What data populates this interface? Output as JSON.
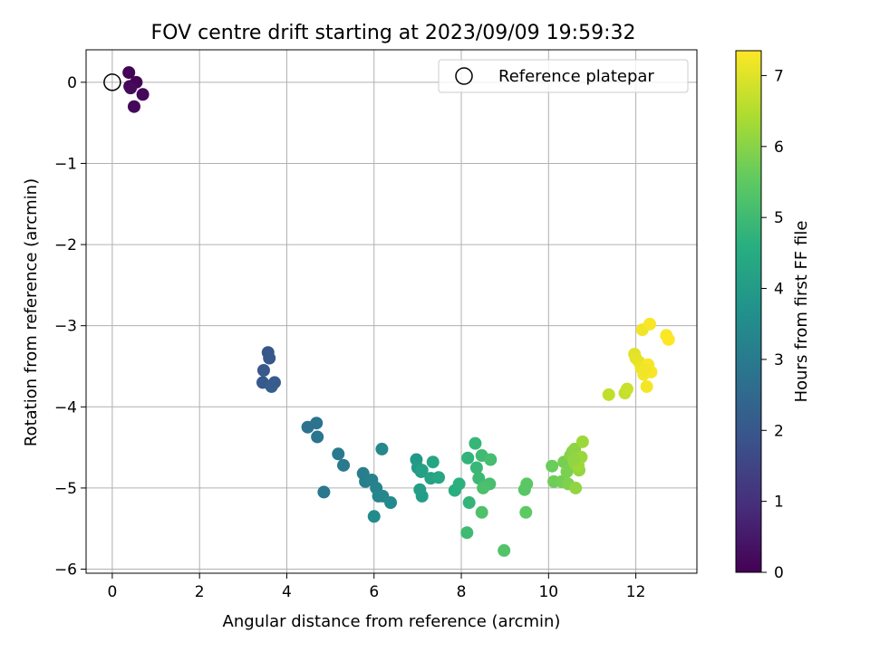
{
  "chart_data": {
    "type": "scatter",
    "title": "FOV centre drift starting at 2023/09/09 19:59:32",
    "xlabel": "Angular distance from reference (arcmin)",
    "ylabel": "Rotation from reference (arcmin)",
    "xlim": [
      -0.6,
      13.4
    ],
    "ylim": [
      -6.05,
      0.4
    ],
    "xticks": [
      0,
      2,
      4,
      6,
      8,
      10,
      12
    ],
    "yticks": [
      0,
      -1,
      -2,
      -3,
      -4,
      -5,
      -6
    ],
    "xtick_labels": [
      "0",
      "2",
      "4",
      "6",
      "8",
      "10",
      "12"
    ],
    "ytick_labels": [
      "0",
      "−1",
      "−2",
      "−3",
      "−4",
      "−5",
      "−6"
    ],
    "grid": true,
    "legend": {
      "placement": "top-right",
      "entries": [
        {
          "label": "Reference platepar",
          "marker": "open-circle"
        }
      ]
    },
    "reference_point": {
      "x": 0,
      "y": 0,
      "label": "Reference platepar"
    },
    "colorbar": {
      "label": "Hours from first FF file",
      "colormap": "viridis",
      "range": [
        0,
        7.35
      ],
      "ticks": [
        0,
        1,
        2,
        3,
        4,
        5,
        6,
        7
      ],
      "tick_labels": [
        "0",
        "1",
        "2",
        "3",
        "4",
        "5",
        "6",
        "7"
      ]
    },
    "series": [
      {
        "x": [
          0.38,
          0.55,
          0.4,
          0.7,
          0.5,
          0.42,
          3.57,
          3.6,
          3.47,
          3.45,
          3.72,
          3.65,
          4.48,
          4.68,
          4.7,
          4.85,
          5.18,
          5.3,
          5.75,
          5.8,
          5.95,
          6.05,
          6.1,
          6.2,
          6.18,
          6.38,
          6.0,
          6.97,
          7.0,
          7.08,
          7.1,
          7.05,
          7.1,
          7.3,
          7.35,
          7.48,
          7.85,
          7.95,
          8.15,
          8.18,
          8.32,
          8.35,
          8.4,
          8.47,
          8.55,
          8.67,
          8.65,
          8.5,
          8.47,
          8.13,
          8.98,
          9.45,
          9.5,
          9.48,
          10.08,
          10.12,
          10.3,
          10.35,
          10.42,
          10.45,
          10.5,
          10.55,
          10.6,
          10.6,
          10.62,
          10.7,
          10.75,
          10.78,
          10.68,
          10.58,
          11.38,
          11.75,
          11.8,
          11.97,
          12.0,
          12.08,
          12.12,
          12.15,
          12.18,
          12.2,
          12.25,
          12.28,
          12.32,
          12.35,
          12.7,
          12.75,
          12.22
        ]
      }
    ],
    "y_values": [
      0.12,
      0.0,
      -0.05,
      -0.15,
      -0.3,
      -0.07,
      -3.33,
      -3.4,
      -3.55,
      -3.7,
      -3.7,
      -3.75,
      -4.25,
      -4.2,
      -4.37,
      -5.05,
      -4.58,
      -4.72,
      -4.82,
      -4.92,
      -4.9,
      -5.0,
      -5.1,
      -5.1,
      -4.52,
      -5.18,
      -5.35,
      -4.65,
      -4.75,
      -4.8,
      -5.1,
      -5.02,
      -4.78,
      -4.88,
      -4.68,
      -4.87,
      -5.03,
      -4.95,
      -4.63,
      -5.18,
      -4.45,
      -4.75,
      -4.88,
      -4.6,
      -4.97,
      -4.65,
      -4.95,
      -5.0,
      -5.3,
      -5.55,
      -5.77,
      -5.02,
      -4.95,
      -5.3,
      -4.73,
      -4.92,
      -4.92,
      -4.68,
      -4.8,
      -4.95,
      -4.6,
      -4.55,
      -4.7,
      -4.52,
      -5.0,
      -4.78,
      -4.62,
      -4.43,
      -4.72,
      -4.65,
      -3.85,
      -3.83,
      -3.78,
      -3.35,
      -3.4,
      -3.45,
      -3.52,
      -3.05,
      -3.6,
      -3.58,
      -3.75,
      -3.48,
      -2.98,
      -3.57,
      -3.12,
      -3.17,
      -3.55
    ],
    "hours": [
      0.05,
      0.08,
      0.1,
      0.12,
      0.15,
      0.18,
      1.95,
      2.0,
      2.05,
      2.08,
      2.1,
      2.15,
      2.75,
      2.8,
      2.85,
      2.9,
      2.95,
      3.0,
      3.1,
      3.15,
      3.2,
      3.25,
      3.3,
      3.35,
      3.4,
      3.45,
      3.5,
      3.9,
      3.95,
      4.0,
      4.05,
      4.1,
      4.15,
      4.25,
      4.3,
      4.35,
      4.6,
      4.65,
      4.75,
      4.8,
      4.85,
      4.9,
      4.95,
      5.0,
      5.05,
      5.1,
      5.15,
      5.2,
      5.25,
      5.0,
      5.3,
      5.4,
      5.45,
      5.5,
      5.65,
      5.7,
      5.75,
      5.8,
      5.85,
      5.9,
      5.95,
      6.0,
      6.05,
      6.05,
      6.1,
      6.15,
      6.2,
      6.25,
      6.25,
      6.1,
      6.65,
      6.7,
      6.75,
      7.0,
      7.05,
      7.1,
      7.15,
      7.2,
      7.2,
      7.25,
      7.25,
      7.28,
      7.3,
      7.3,
      7.32,
      7.35,
      7.22
    ]
  }
}
